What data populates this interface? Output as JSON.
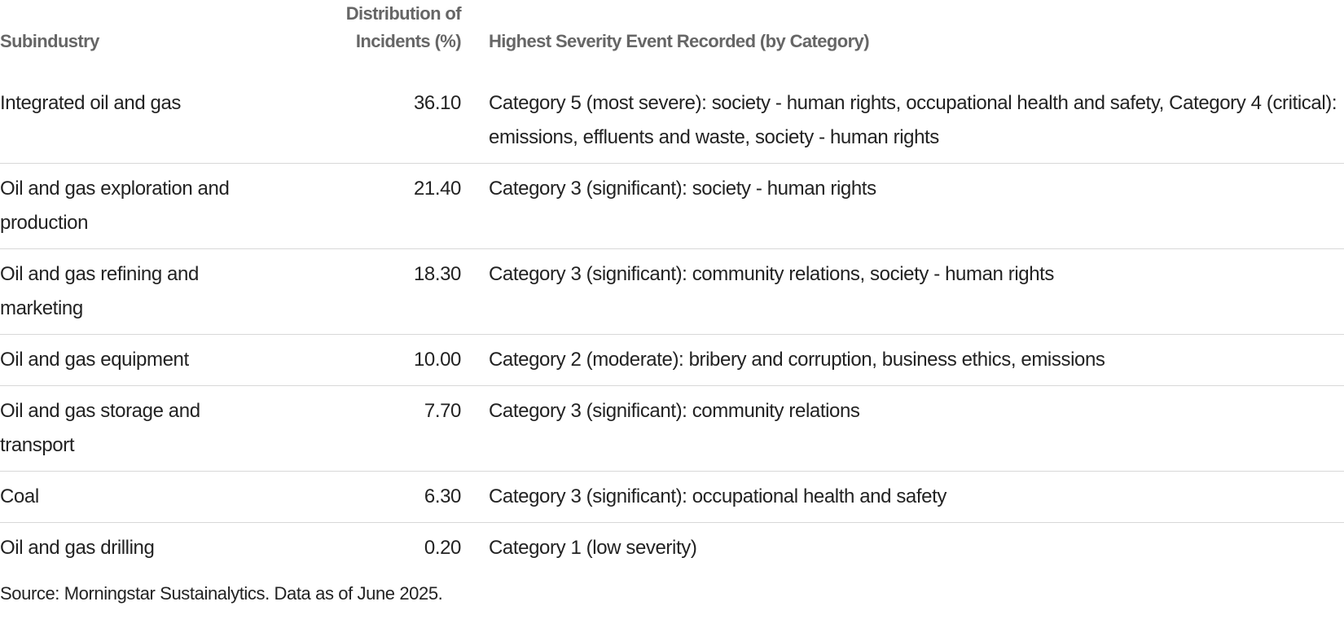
{
  "header": {
    "columns": [
      "Subindustry",
      "Distribution of Incidents (%)",
      "Highest Severity Event Recorded (by Category)"
    ]
  },
  "table": {
    "rows": [
      [
        "Integrated oil and gas",
        "36.10",
        "Category 5 (most severe): society - human rights, occupational health and safety, Category 4 (critical): emissions, effluents and waste, society - human rights"
      ],
      [
        "Oil and gas exploration and production",
        "21.40",
        "Category 3 (significant): society - human rights"
      ],
      [
        "Oil and gas refining and marketing",
        "18.30",
        "Category 3 (significant): community relations, society - human rights"
      ],
      [
        "Oil and gas equipment",
        "10.00",
        "Category 2 (moderate): bribery and corruption, business ethics, emissions"
      ],
      [
        "Oil and gas storage and transport",
        "7.70",
        "Category 3 (significant): community relations"
      ],
      [
        "Coal",
        "6.30",
        "Category 3 (significant): occupational health and safety"
      ],
      [
        "Oil and gas drilling",
        "0.20",
        "Category 1 (low severity)"
      ]
    ]
  },
  "footer": {
    "source": "Source: Morningstar Sustainalytics. Data as of June 2025."
  }
}
